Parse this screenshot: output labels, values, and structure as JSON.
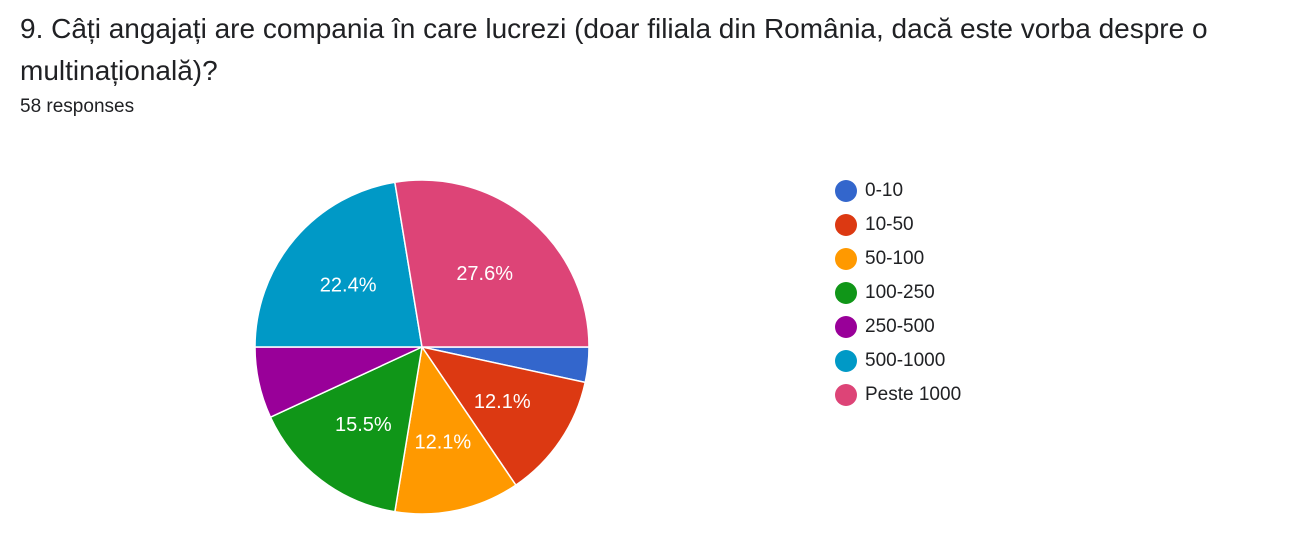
{
  "question": {
    "title": "9. Câți angajați are compania în care lucrezi (doar filiala din România, dacă este vorba despre o multinațională)?",
    "responses": "58 responses"
  },
  "chart_data": {
    "type": "pie",
    "categories": [
      "0-10",
      "10-50",
      "50-100",
      "100-250",
      "250-500",
      "500-1000",
      "Peste 1000"
    ],
    "values": [
      3.4,
      12.1,
      12.1,
      15.5,
      6.9,
      22.4,
      27.6
    ],
    "data_labels": [
      "",
      "12.1%",
      "12.1%",
      "15.5%",
      "",
      "22.4%",
      "27.6%"
    ],
    "colors": [
      "#3366cc",
      "#dc3912",
      "#ff9900",
      "#109618",
      "#990099",
      "#0099c6",
      "#dd4477"
    ],
    "legend_position": "right",
    "start_direction": "clockwise from 3 o'clock, reversed order"
  }
}
